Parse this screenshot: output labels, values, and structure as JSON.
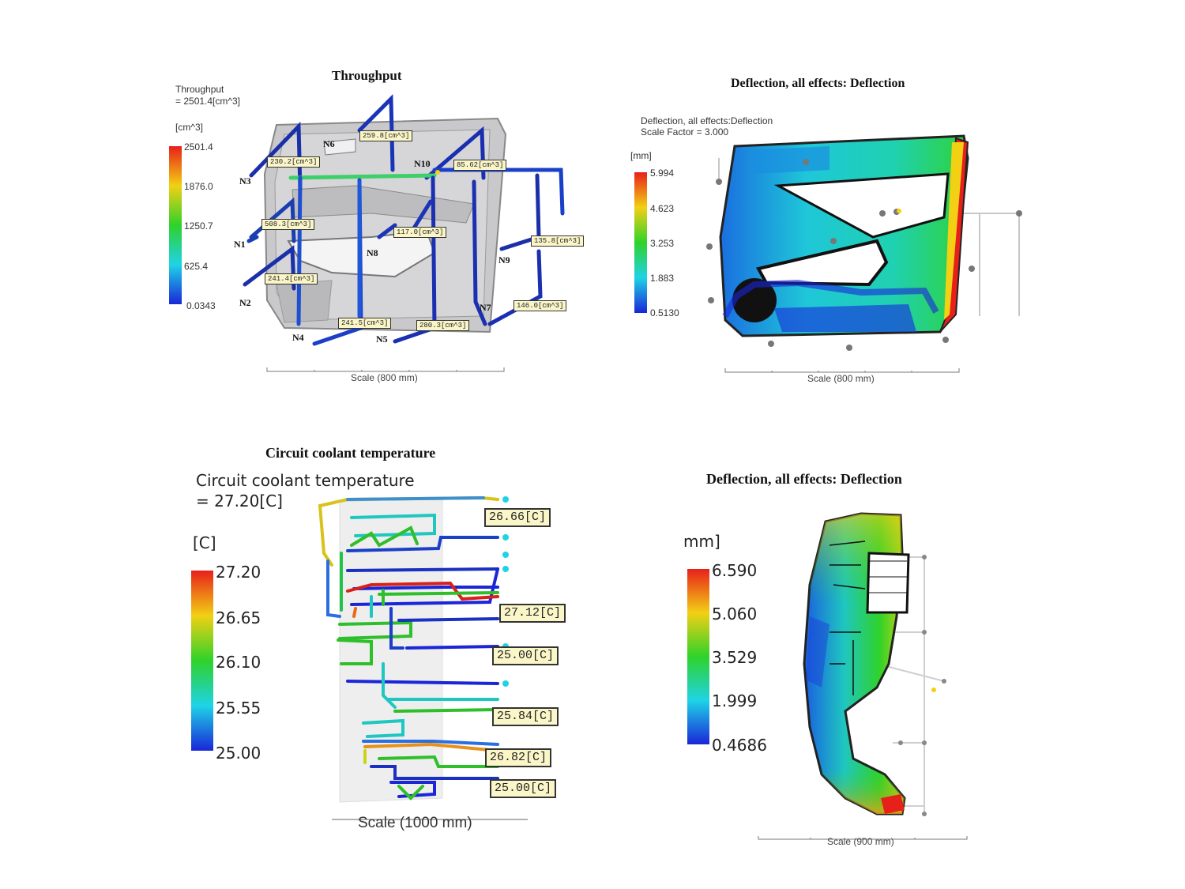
{
  "colors": {
    "red": "#e8201a",
    "yellow": "#f2d014",
    "green": "#2fd22a",
    "cyan": "#1fd3e6",
    "blue": "#1a26d8",
    "tag_bg": "#fbf6c8"
  },
  "panels": {
    "throughput": {
      "title": "Throughput",
      "legend_title_line1": "Throughput",
      "legend_title_line2": " = 2501.4[cm^3]",
      "unit": "[cm^3]",
      "ticks": [
        "2501.4",
        "1876.0",
        "1250.7",
        "625.4",
        "0.0343"
      ],
      "tags": [
        "259.8[cm^3]",
        "230.2[cm^3]",
        "85.62[cm^3]",
        "508.3[cm^3]",
        "117.0[cm^3]",
        "135.8[cm^3]",
        "241.4[cm^3]",
        "146.0[cm^3]",
        "241.5[cm^3]",
        "280.3[cm^3]"
      ],
      "nodes": [
        "N6",
        "N3",
        "N10",
        "N1",
        "N8",
        "N9",
        "N2",
        "N7",
        "N4",
        "N5"
      ],
      "scale": "Scale (800 mm)"
    },
    "deflection1": {
      "title": "Deflection, all effects: Deflection",
      "legend_title_line1": "Deflection, all effects:Deflection",
      "legend_title_line2": "Scale Factor = 3.000",
      "unit": "[mm]",
      "ticks": [
        "5.994",
        "4.623",
        "3.253",
        "1.883",
        "0.5130"
      ],
      "scale": "Scale (800 mm)"
    },
    "coolant": {
      "title": "Circuit coolant temperature",
      "legend_title_line1": "Circuit coolant temperature",
      "legend_title_line2": " = 27.20[C]",
      "unit": "[C]",
      "ticks": [
        "27.20",
        "26.65",
        "26.10",
        "25.55",
        "25.00"
      ],
      "tags": [
        "26.66[C]",
        "27.12[C]",
        "25.00[C]",
        "25.84[C]",
        "26.82[C]",
        "25.00[C]"
      ],
      "scale": "Scale (1000 mm)"
    },
    "deflection2": {
      "title": "Deflection, all effects: Deflection",
      "unit": "mm]",
      "ticks": [
        "6.590",
        "5.060",
        "3.529",
        "1.999",
        "0.4686"
      ],
      "scale": "Scale (900 mm)"
    }
  }
}
